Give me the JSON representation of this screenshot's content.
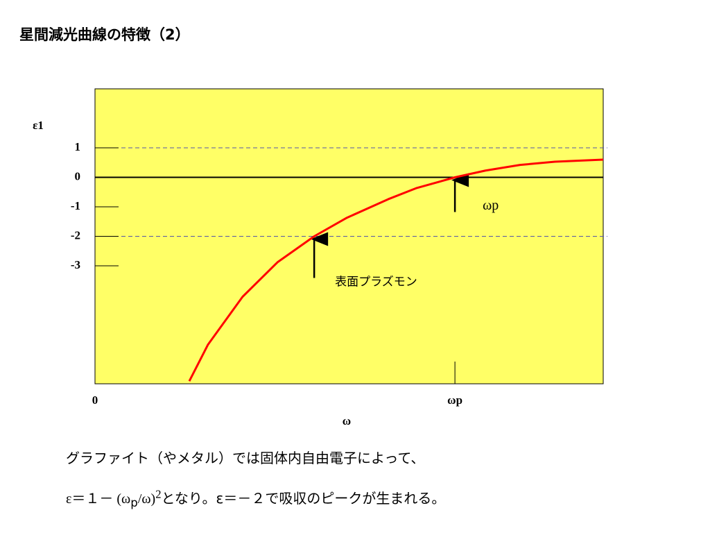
{
  "title": "星間減光曲線の特徴（2）",
  "caption": [
    "グラファイト（やメタル）では固体内自由電子によって、"
  ],
  "caption_formula": [
    "ε＝１－ (ω",
    "p",
    "/ω)",
    "2",
    "となり。ε＝－２で吸収のピークが生まれる。"
  ],
  "chart_data": {
    "type": "line",
    "y_label": "ε1",
    "x_label": "ω",
    "x": [
      0.262,
      0.314,
      0.41,
      0.507,
      0.609,
      0.7,
      0.815,
      0.892,
      1.0,
      1.085,
      1.181,
      1.278,
      1.412
    ],
    "series": [
      {
        "name": "ε1",
        "color": "#ff0000",
        "values": [
          -6.91,
          -5.67,
          -4.05,
          -2.88,
          -2.0,
          -1.37,
          -0.74,
          -0.37,
          0,
          0.23,
          0.42,
          0.53,
          0.6
        ]
      }
    ],
    "xlim": [
      0,
      1.412
    ],
    "ylim": [
      -7,
      3
    ],
    "xticks": [
      0,
      {
        "value": 1,
        "label": "ωp"
      }
    ],
    "yticks": [
      1,
      0,
      -1,
      -2,
      -3
    ],
    "reference_lines": [
      1,
      -2
    ],
    "background": "#ffff66",
    "annotations": [
      "ωp",
      "表面プラズモン"
    ]
  }
}
